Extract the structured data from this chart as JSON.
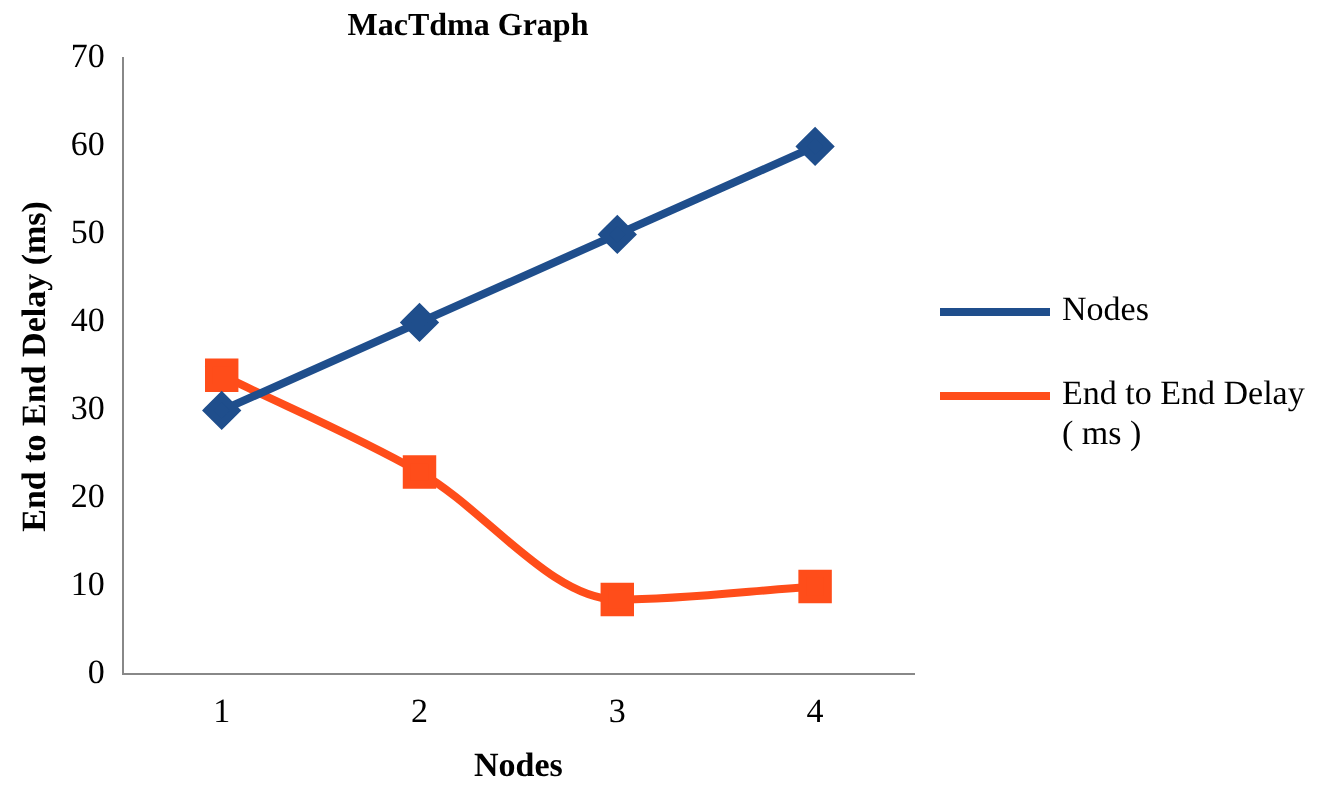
{
  "chart_data": {
    "type": "line",
    "title": "MacTdma Graph",
    "xlabel": "Nodes",
    "ylabel": "End to End Delay (ms)",
    "categories": [
      "1",
      "2",
      "3",
      "4"
    ],
    "series": [
      {
        "name": "Nodes",
        "color": "#1f4e8c",
        "values": [
          30,
          40,
          50,
          60
        ],
        "marker": "diamond"
      },
      {
        "name": "End to End Delay ( ms )",
        "color": "#ff4d1a",
        "values": [
          34,
          23,
          8.5,
          10
        ],
        "marker": "square"
      }
    ],
    "ylim": [
      0,
      70
    ],
    "yticks": [
      0,
      10,
      20,
      30,
      40,
      50,
      60,
      70
    ],
    "grid": false,
    "legend": "right"
  }
}
